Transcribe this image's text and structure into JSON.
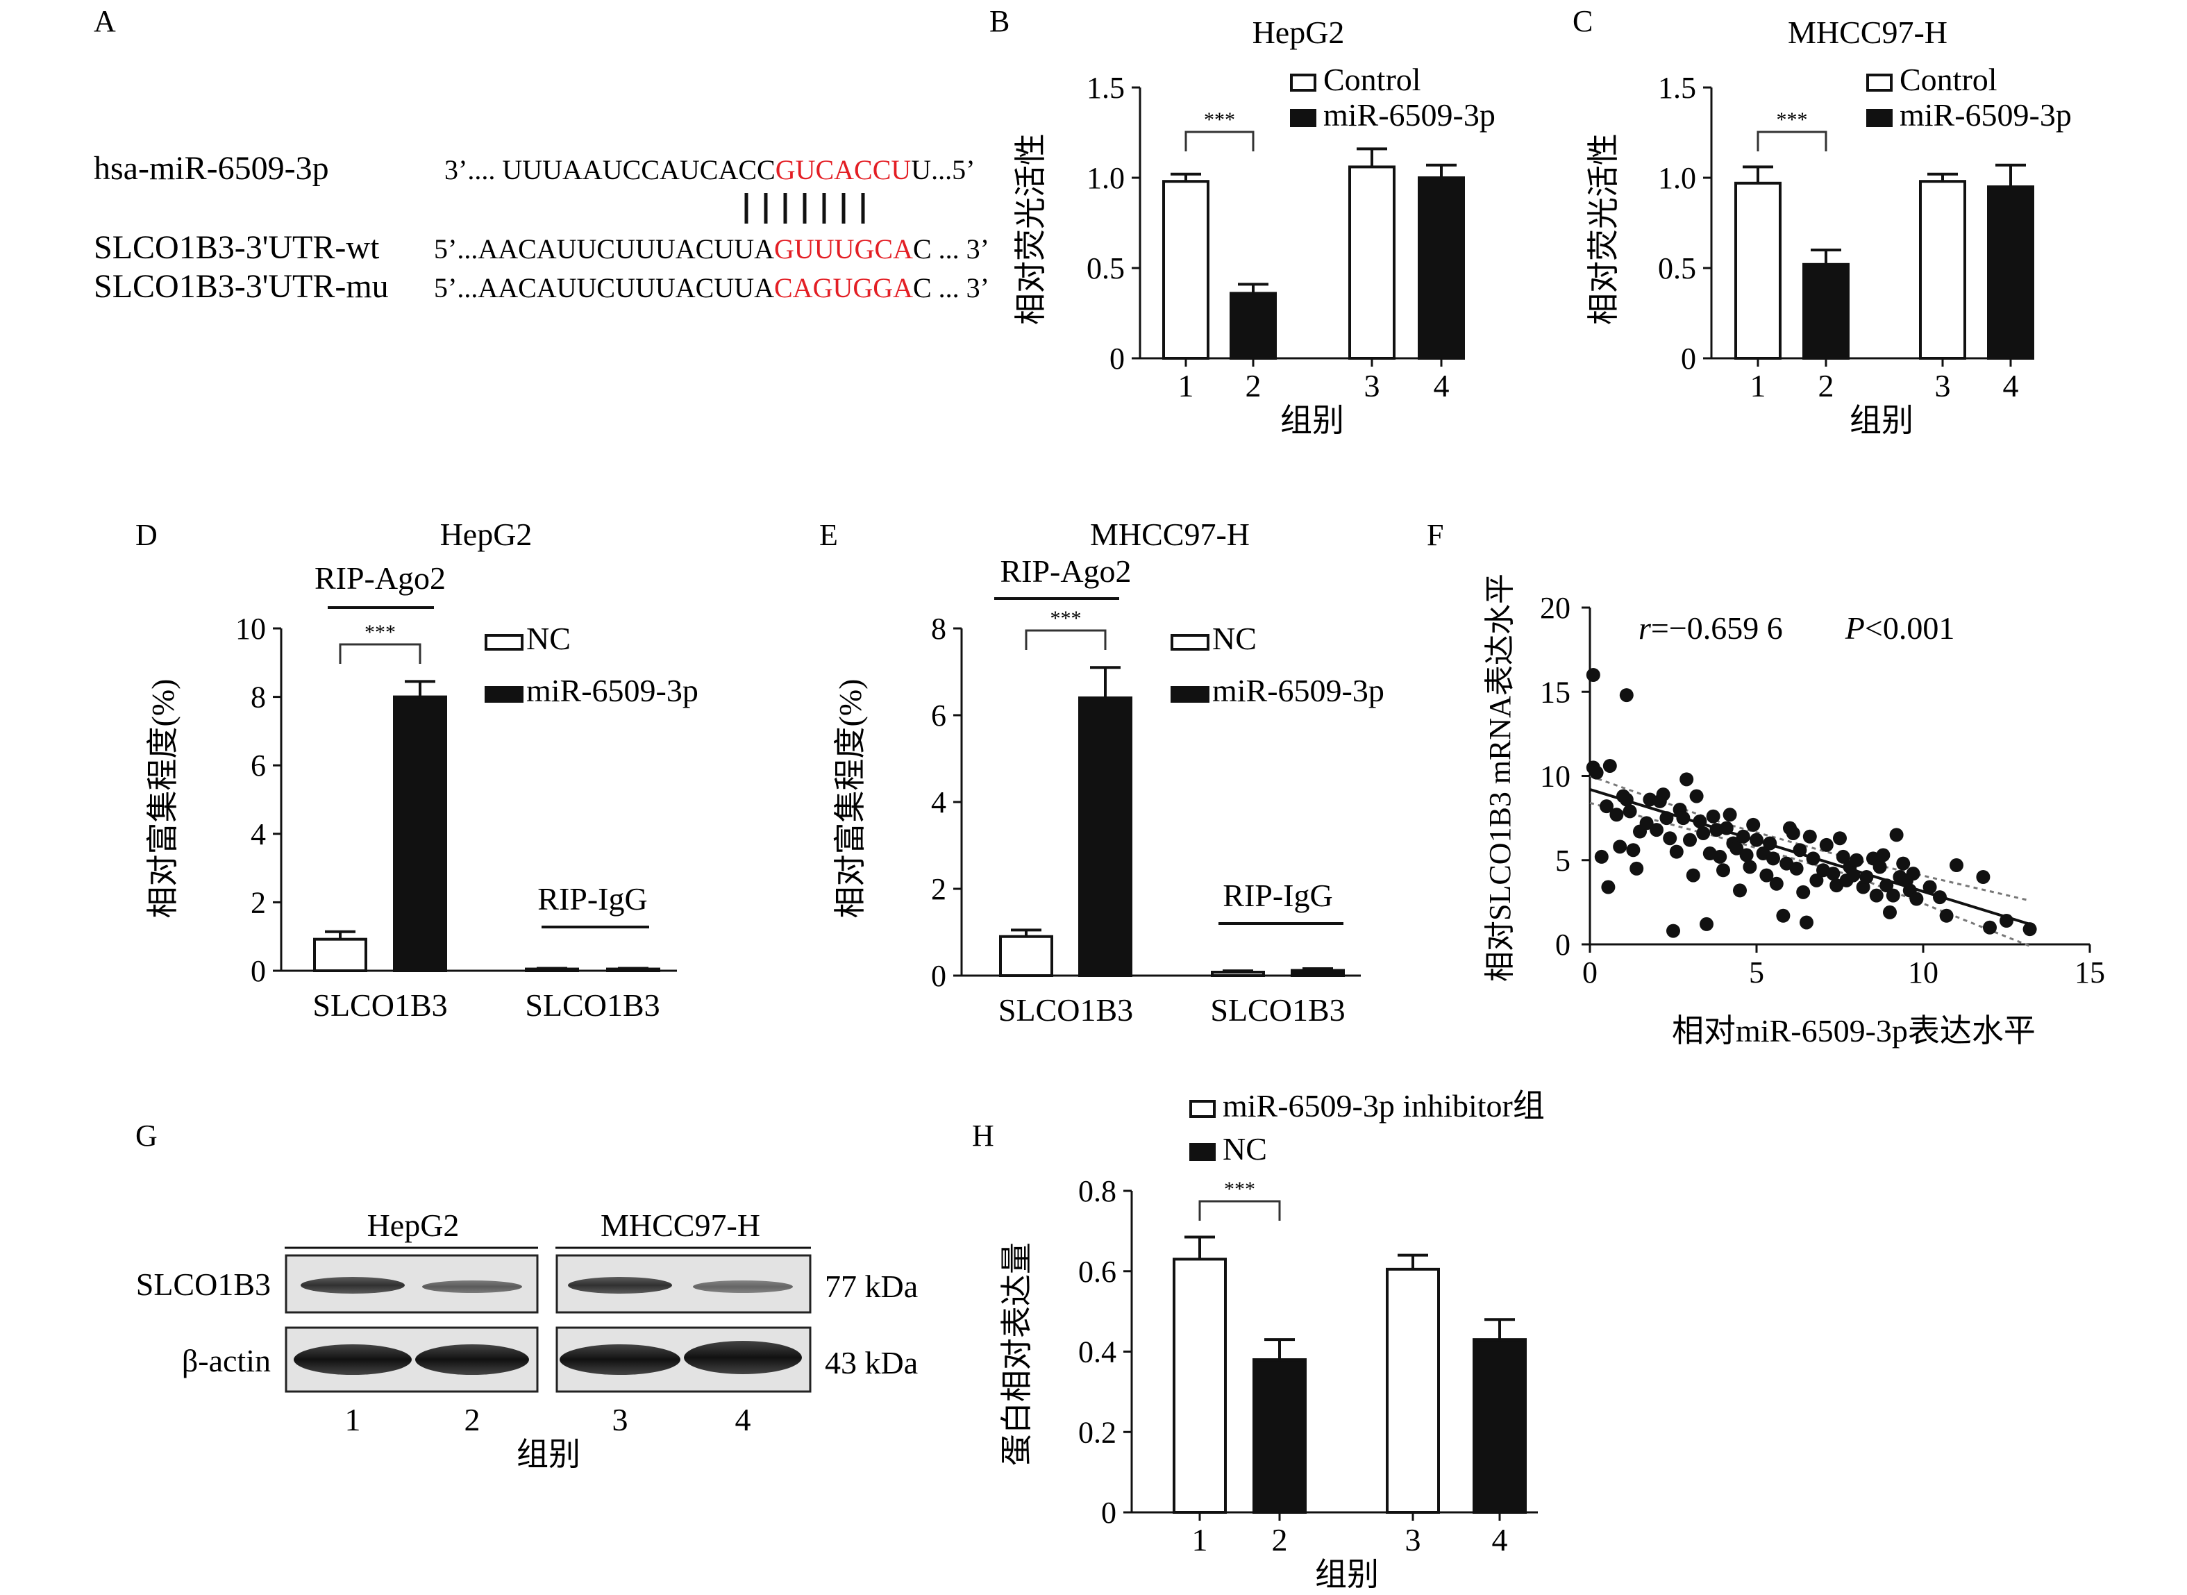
{
  "panel_labels": {
    "A": "A",
    "B": "B",
    "C": "C",
    "D": "D",
    "E": "E",
    "F": "F",
    "G": "G",
    "H": "H"
  },
  "panelA": {
    "rows": [
      {
        "name": "hsa-miR-6509-3p",
        "prefix": "3’.... UUUAAUCCAUCACC",
        "site": "GUCACCU",
        "suffix": "U...5’"
      },
      {
        "name": "SLCO1B3-3'UTR-wt",
        "prefix": "5’...AACAUUCUUUACUUA",
        "site": "GUUUGCA",
        "suffix": "C ... 3’"
      },
      {
        "name": "SLCO1B3-3'UTR-mu",
        "prefix": "5’...AACAUUCUUUACUUA",
        "site": "CAGUGGA",
        "suffix": "C ... 3’"
      }
    ],
    "site_color": "#e31e24"
  },
  "chart_data": [
    {
      "id": "B",
      "type": "bar",
      "title": "HepG2",
      "ylabel": "相对荧光活性",
      "xlabel": "组别",
      "categories": [
        "1",
        "2",
        "3",
        "4"
      ],
      "values": [
        0.98,
        0.36,
        1.06,
        1.0
      ],
      "errors": [
        0.04,
        0.05,
        0.1,
        0.07
      ],
      "bar_fills": [
        "#ffffff",
        "#111111",
        "#ffffff",
        "#111111"
      ],
      "ylim": [
        0,
        1.5
      ],
      "yticks": [
        "0",
        "0.5",
        "1.0",
        "1.5"
      ],
      "yticks_values": [
        0,
        0.5,
        1.0,
        1.5
      ],
      "legend": [
        "Control",
        "miR-6509-3p"
      ],
      "legend_position": "top-right",
      "sig": "***"
    },
    {
      "id": "C",
      "type": "bar",
      "title": "MHCC97-H",
      "ylabel": "相对荧光活性",
      "xlabel": "组别",
      "categories": [
        "1",
        "2",
        "3",
        "4"
      ],
      "values": [
        0.97,
        0.52,
        0.98,
        0.95
      ],
      "errors": [
        0.09,
        0.08,
        0.04,
        0.12
      ],
      "bar_fills": [
        "#ffffff",
        "#111111",
        "#ffffff",
        "#111111"
      ],
      "ylim": [
        0,
        1.5
      ],
      "yticks": [
        "0",
        "0.5",
        "1.0",
        "1.5"
      ],
      "yticks_values": [
        0,
        0.5,
        1.0,
        1.5
      ],
      "legend": [
        "Control",
        "miR-6509-3p"
      ],
      "legend_position": "top-right",
      "sig": "***"
    },
    {
      "id": "D",
      "type": "bar",
      "title": "HepG2",
      "ylabel": "相对富集程度(%)",
      "categories": [
        "SLCO1B3",
        "SLCO1B3"
      ],
      "group_labels": [
        "RIP-Ago2",
        "RIP-IgG"
      ],
      "values": [
        [
          0.92,
          8.0
        ],
        [
          0.05,
          0.05
        ]
      ],
      "errors": [
        [
          0.22,
          0.45
        ],
        [
          0.02,
          0.02
        ]
      ],
      "ylim": [
        0,
        10
      ],
      "yticks": [
        "0",
        "2",
        "4",
        "6",
        "8",
        "10"
      ],
      "yticks_values": [
        0,
        2,
        4,
        6,
        8,
        10
      ],
      "legend": [
        "NC",
        "miR-6509-3p"
      ],
      "legend_position": "top-right",
      "sig": "***"
    },
    {
      "id": "E",
      "type": "bar",
      "title": "MHCC97-H",
      "ylabel": "相对富集程度(%)",
      "categories": [
        "SLCO1B3",
        "SLCO1B3"
      ],
      "group_labels": [
        "RIP-Ago2",
        "RIP-IgG"
      ],
      "values": [
        [
          0.9,
          6.4
        ],
        [
          0.08,
          0.12
        ]
      ],
      "errors": [
        [
          0.15,
          0.7
        ],
        [
          0.03,
          0.04
        ]
      ],
      "ylim": [
        0,
        8
      ],
      "yticks": [
        "0",
        "2",
        "4",
        "6",
        "8"
      ],
      "yticks_values": [
        0,
        2,
        4,
        6,
        8
      ],
      "legend": [
        "NC",
        "miR-6509-3p"
      ],
      "legend_position": "top-right",
      "sig": "***"
    },
    {
      "id": "F",
      "type": "scatter",
      "ylabel": "相对SLCO1B3 mRNA表达水平",
      "xlabel": "相对miR-6509-3p表达水平",
      "xlim": [
        0,
        15
      ],
      "ylim": [
        0,
        20
      ],
      "xticks": [
        "0",
        "5",
        "10",
        "15"
      ],
      "xticks_values": [
        0,
        5,
        10,
        15
      ],
      "yticks": [
        "0",
        "5",
        "10",
        "15",
        "20"
      ],
      "yticks_values": [
        0,
        5,
        10,
        15,
        20
      ],
      "annotation_r_label": "r",
      "annotation_r_value": "=−0.659 6",
      "annotation_p_label": "P",
      "annotation_p_value": "<0.001",
      "fit_line": [
        [
          0,
          9.2
        ],
        [
          13.2,
          1.2
        ]
      ],
      "ci_upper": [
        [
          0,
          10.0
        ],
        [
          4,
          7.2
        ],
        [
          8,
          5.0
        ],
        [
          13.2,
          2.6
        ]
      ],
      "ci_lower": [
        [
          0,
          8.4
        ],
        [
          4,
          6.3
        ],
        [
          8,
          4.0
        ],
        [
          13.2,
          -0.1
        ]
      ],
      "points": [
        [
          0.1,
          16
        ],
        [
          0.1,
          10.5
        ],
        [
          0.2,
          10.2
        ],
        [
          0.35,
          5.2
        ],
        [
          0.5,
          8.2
        ],
        [
          0.55,
          3.4
        ],
        [
          0.6,
          10.6
        ],
        [
          0.8,
          7.7
        ],
        [
          0.9,
          5.8
        ],
        [
          1.0,
          8.8
        ],
        [
          1.1,
          14.8
        ],
        [
          1.1,
          8.6
        ],
        [
          1.2,
          7.9
        ],
        [
          1.3,
          5.6
        ],
        [
          1.4,
          4.5
        ],
        [
          1.5,
          6.7
        ],
        [
          1.7,
          7.2
        ],
        [
          1.8,
          8.6
        ],
        [
          2.0,
          6.8
        ],
        [
          2.1,
          8.5
        ],
        [
          2.2,
          8.9
        ],
        [
          2.3,
          7.5
        ],
        [
          2.4,
          6.3
        ],
        [
          2.5,
          0.8
        ],
        [
          2.6,
          5.5
        ],
        [
          2.7,
          8.0
        ],
        [
          2.8,
          7.5
        ],
        [
          2.9,
          9.8
        ],
        [
          3.0,
          6.2
        ],
        [
          3.1,
          4.1
        ],
        [
          3.2,
          8.8
        ],
        [
          3.3,
          7.3
        ],
        [
          3.4,
          6.6
        ],
        [
          3.5,
          1.2
        ],
        [
          3.6,
          5.4
        ],
        [
          3.7,
          7.6
        ],
        [
          3.8,
          6.8
        ],
        [
          3.9,
          5.2
        ],
        [
          4.0,
          4.4
        ],
        [
          4.1,
          6.9
        ],
        [
          4.2,
          7.7
        ],
        [
          4.3,
          6.0
        ],
        [
          4.4,
          5.7
        ],
        [
          4.5,
          3.2
        ],
        [
          4.6,
          6.4
        ],
        [
          4.7,
          5.3
        ],
        [
          4.8,
          4.6
        ],
        [
          4.9,
          7.1
        ],
        [
          5.0,
          6.2
        ],
        [
          5.2,
          5.4
        ],
        [
          5.3,
          4.1
        ],
        [
          5.4,
          6.0
        ],
        [
          5.5,
          5.1
        ],
        [
          5.6,
          3.6
        ],
        [
          5.8,
          1.7
        ],
        [
          5.9,
          4.8
        ],
        [
          6.0,
          6.9
        ],
        [
          6.1,
          6.6
        ],
        [
          6.2,
          4.5
        ],
        [
          6.3,
          5.6
        ],
        [
          6.4,
          3.1
        ],
        [
          6.5,
          1.3
        ],
        [
          6.6,
          6.4
        ],
        [
          6.7,
          5.1
        ],
        [
          6.8,
          3.8
        ],
        [
          7.0,
          4.4
        ],
        [
          7.1,
          5.9
        ],
        [
          7.3,
          4.2
        ],
        [
          7.4,
          3.5
        ],
        [
          7.5,
          6.3
        ],
        [
          7.6,
          5.2
        ],
        [
          7.7,
          3.8
        ],
        [
          7.8,
          4.6
        ],
        [
          7.9,
          4.1
        ],
        [
          8.0,
          5.0
        ],
        [
          8.2,
          3.4
        ],
        [
          8.3,
          4.0
        ],
        [
          8.5,
          5.1
        ],
        [
          8.6,
          2.9
        ],
        [
          8.7,
          4.6
        ],
        [
          8.8,
          5.3
        ],
        [
          8.9,
          3.5
        ],
        [
          9.0,
          1.9
        ],
        [
          9.1,
          2.9
        ],
        [
          9.2,
          6.5
        ],
        [
          9.3,
          4.0
        ],
        [
          9.4,
          4.8
        ],
        [
          9.5,
          3.8
        ],
        [
          9.6,
          3.2
        ],
        [
          9.7,
          4.2
        ],
        [
          9.8,
          2.7
        ],
        [
          10.2,
          3.4
        ],
        [
          10.5,
          2.8
        ],
        [
          10.7,
          1.7
        ],
        [
          11.0,
          4.7
        ],
        [
          11.8,
          4.0
        ],
        [
          12.0,
          1.0
        ],
        [
          12.5,
          1.4
        ],
        [
          13.2,
          0.9
        ]
      ]
    },
    {
      "id": "H",
      "type": "bar",
      "ylabel": "蛋白相对表达量",
      "xlabel": "组别",
      "categories": [
        "1",
        "2",
        "3",
        "4"
      ],
      "values": [
        0.63,
        0.38,
        0.605,
        0.43
      ],
      "errors": [
        0.055,
        0.05,
        0.035,
        0.05
      ],
      "bar_fills": [
        "#ffffff",
        "#111111",
        "#ffffff",
        "#111111"
      ],
      "ylim": [
        0,
        0.8
      ],
      "yticks": [
        "0",
        "0.2",
        "0.4",
        "0.6",
        "0.8"
      ],
      "yticks_values": [
        0,
        0.2,
        0.4,
        0.6,
        0.8
      ],
      "legend": [
        "miR-6509-3p inhibitor组",
        "NC"
      ],
      "legend_position": "top",
      "sig": "***"
    }
  ],
  "panelG": {
    "cell_lines": [
      "HepG2",
      "MHCC97-H"
    ],
    "bands": [
      {
        "name": "SLCO1B3",
        "size": "77 kDa"
      },
      {
        "name": "β-actin",
        "size": "43 kDa"
      }
    ],
    "lanes": [
      "1",
      "2",
      "3",
      "4"
    ],
    "xlabel": "组别"
  }
}
